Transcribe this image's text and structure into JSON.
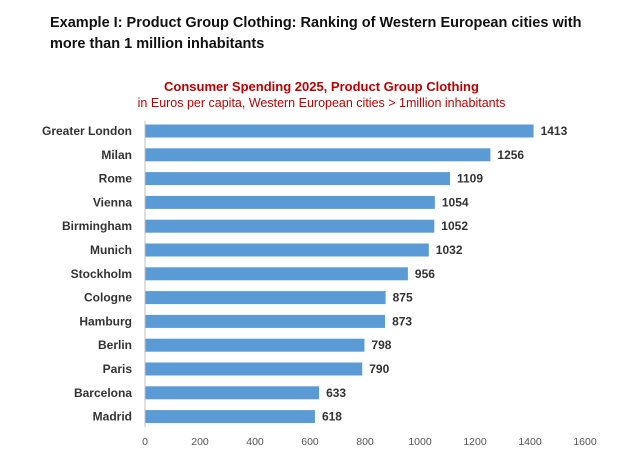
{
  "heading": "Example I: Product Group Clothing: Ranking of Western European cities with more than 1 million inhabitants",
  "chart_data": {
    "type": "bar",
    "orientation": "horizontal",
    "title": "Consumer Spending 2025, Product Group Clothing",
    "subtitle": "in Euros per capita, Western European cities > 1million inhabitants",
    "categories": [
      "Greater London",
      "Milan",
      "Rome",
      "Vienna",
      "Birmingham",
      "Munich",
      "Stockholm",
      "Cologne",
      "Hamburg",
      "Berlin",
      "Paris",
      "Barcelona",
      "Madrid"
    ],
    "values": [
      1413,
      1256,
      1109,
      1054,
      1052,
      1032,
      956,
      875,
      873,
      798,
      790,
      633,
      618
    ],
    "value_labels": [
      "1413",
      "1256",
      "1109",
      "1054",
      "1052",
      "1032",
      "956",
      "875",
      "873",
      "798",
      "790",
      "633",
      "618"
    ],
    "xlim": [
      0,
      1600
    ],
    "xticks": [
      "0",
      "200",
      "400",
      "600",
      "800",
      "1000",
      "1200",
      "1400",
      "1600"
    ],
    "bar_color": "#5b9bd5",
    "title_color": "#c00000",
    "grid": false,
    "legend": "none"
  }
}
